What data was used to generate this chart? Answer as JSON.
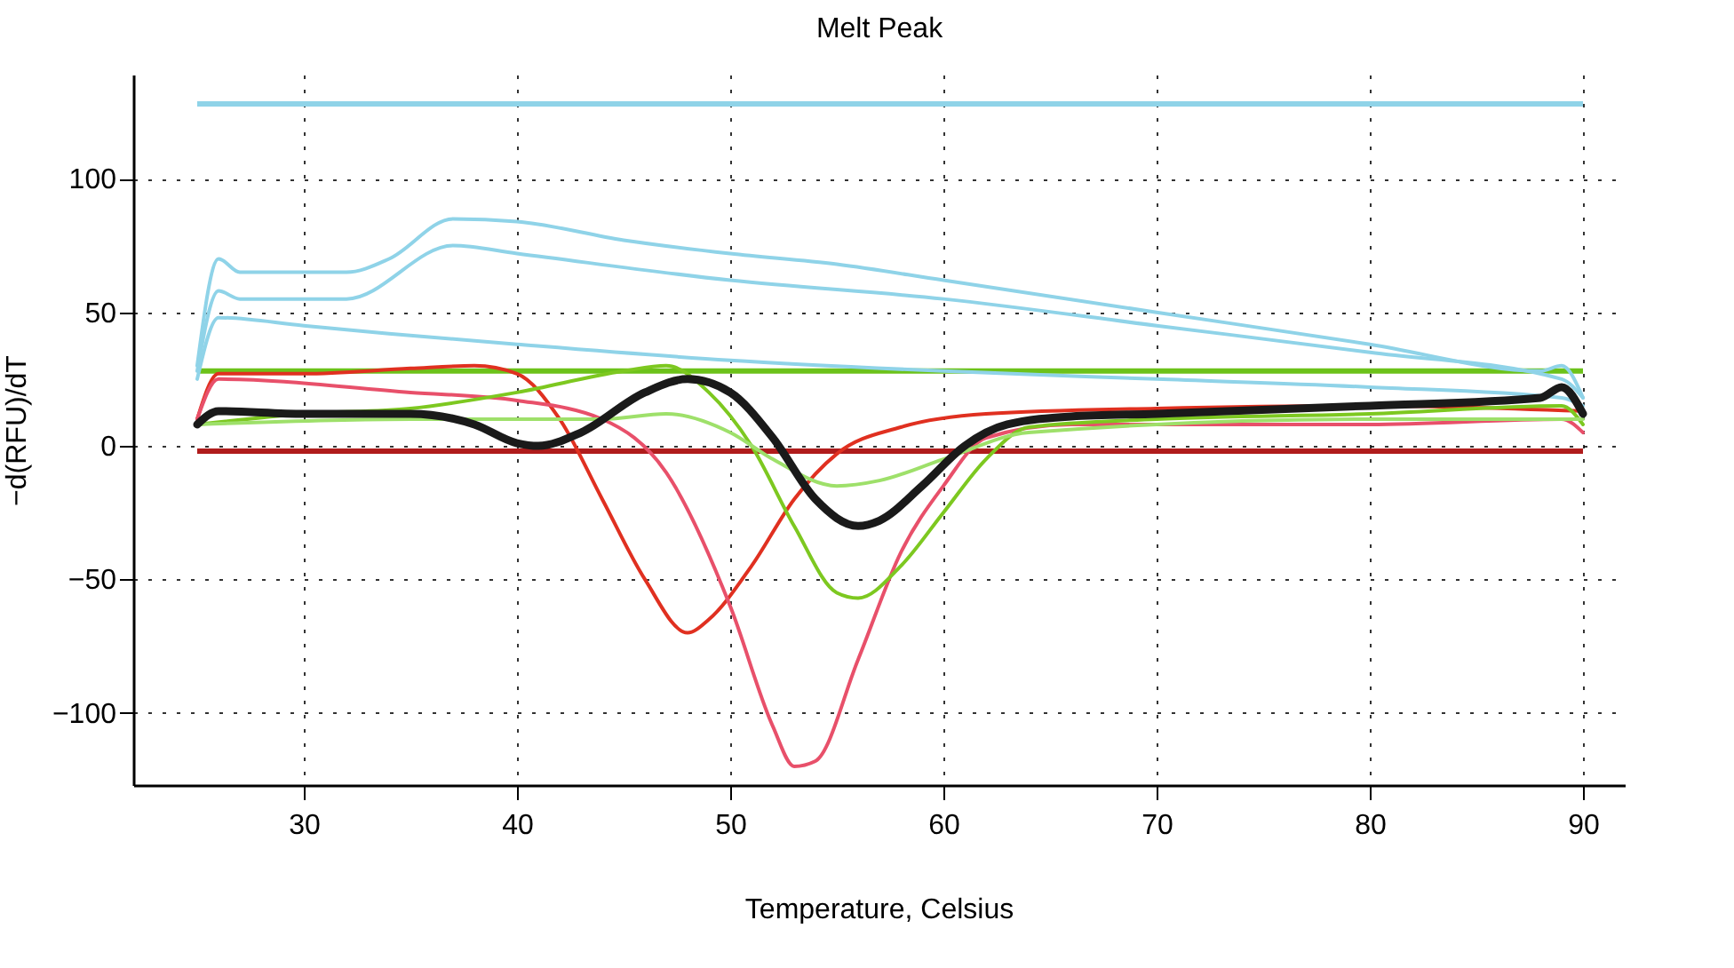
{
  "chart_data": {
    "type": "line",
    "title": "Melt Peak",
    "xlabel": "Temperature, Celsius",
    "ylabel": "−d(RFU)/dT",
    "xlim": [
      22,
      92
    ],
    "ylim": [
      -127,
      139
    ],
    "xticks": [
      30,
      40,
      50,
      60,
      70,
      80,
      90
    ],
    "yticks": [
      -100,
      -50,
      0,
      50,
      100
    ],
    "grid": true,
    "marker": "none",
    "line_style": "solid",
    "ref_lines": [
      {
        "axis": "y",
        "value": 128,
        "color": "#8fd3e8"
      },
      {
        "axis": "y",
        "value": 28,
        "color": "#6cc21a"
      },
      {
        "axis": "y",
        "value": -2,
        "color": "#b01c1c"
      }
    ],
    "series": [
      {
        "color": "#8fd3e8",
        "x": [
          25,
          26,
          27,
          32,
          34,
          37,
          40,
          45,
          50,
          55,
          60,
          70,
          80,
          88,
          89,
          90
        ],
        "values": [
          30,
          70,
          65,
          65,
          70,
          85,
          84,
          77,
          72,
          68,
          62,
          50,
          38,
          28,
          30,
          18
        ]
      },
      {
        "color": "#8fd3e8",
        "x": [
          25,
          26,
          27,
          32,
          37,
          40,
          50,
          60,
          70,
          80,
          89,
          90
        ],
        "values": [
          28,
          58,
          55,
          55,
          75,
          72,
          62,
          55,
          45,
          35,
          25,
          18
        ]
      },
      {
        "color": "#8fd3e8",
        "x": [
          25,
          26,
          30,
          34,
          40,
          50,
          60,
          70,
          80,
          89,
          90
        ],
        "values": [
          25,
          48,
          45,
          42,
          38,
          32,
          28,
          25,
          22,
          18,
          15
        ]
      },
      {
        "color": "#e03020",
        "x": [
          25,
          26,
          30,
          35,
          38,
          40,
          42,
          44,
          46,
          48,
          49,
          51,
          53,
          55,
          58,
          62,
          70,
          80,
          90
        ],
        "values": [
          10,
          27,
          27,
          29,
          30,
          27,
          10,
          -20,
          -50,
          -70,
          -65,
          -45,
          -20,
          -3,
          7,
          12,
          14,
          15,
          13
        ]
      },
      {
        "color": "#e8506a",
        "x": [
          25,
          26,
          35,
          40,
          44,
          47,
          50,
          52,
          53,
          54,
          56,
          58,
          60,
          62,
          66,
          80,
          89,
          90
        ],
        "values": [
          10,
          25,
          20,
          17,
          10,
          -10,
          -60,
          -105,
          -120,
          -118,
          -80,
          -40,
          -15,
          3,
          8,
          8,
          10,
          5
        ]
      },
      {
        "color": "#7dc820",
        "x": [
          25,
          30,
          35,
          40,
          45,
          47,
          49,
          51,
          53,
          55,
          56,
          58,
          60,
          62,
          64,
          70,
          80,
          89,
          90
        ],
        "values": [
          8,
          12,
          14,
          20,
          28,
          30,
          20,
          0,
          -30,
          -55,
          -57,
          -45,
          -25,
          -5,
          7,
          10,
          12,
          15,
          8
        ]
      },
      {
        "color": "#9ee06a",
        "x": [
          25,
          35,
          44,
          47,
          50,
          52,
          55,
          57,
          60,
          64,
          80,
          90
        ],
        "values": [
          8,
          10,
          10,
          12,
          5,
          -5,
          -15,
          -13,
          -5,
          5,
          10,
          10
        ]
      },
      {
        "color": "#1a1a1a",
        "x": [
          25,
          26,
          30,
          35,
          38,
          40,
          41,
          43,
          46,
          48,
          50,
          52,
          54,
          56,
          57,
          59,
          61,
          63,
          66,
          70,
          80,
          88,
          89,
          90
        ],
        "values": [
          8,
          13,
          12,
          12,
          8,
          1,
          0,
          5,
          20,
          25,
          20,
          3,
          -20,
          -30,
          -28,
          -15,
          0,
          8,
          11,
          12,
          15,
          18,
          22,
          12
        ]
      }
    ]
  }
}
